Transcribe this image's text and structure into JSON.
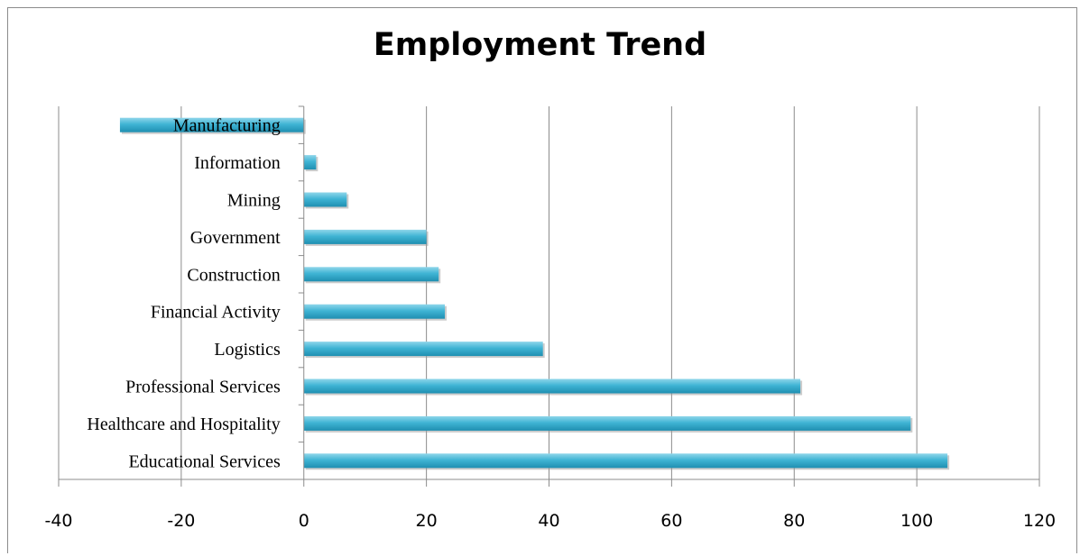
{
  "chart_data": {
    "type": "bar",
    "orientation": "horizontal",
    "title": "Employment Trend",
    "xlabel": "",
    "ylabel": "",
    "xlim": [
      -40,
      120
    ],
    "xticks": [
      "-40",
      "-20",
      "0",
      "20",
      "40",
      "60",
      "80",
      "100",
      "120"
    ],
    "grid": true,
    "legend": "none",
    "bar_color": "#3aaecf",
    "categories": [
      "Educational Services",
      "Healthcare and Hospitality",
      "Professional Services",
      "Logistics",
      "Financial Activity",
      "Construction",
      "Government",
      "Mining",
      "Information",
      "Manufacturing"
    ],
    "values": [
      105,
      99,
      81,
      39,
      23,
      22,
      20,
      7,
      2,
      -30
    ]
  }
}
